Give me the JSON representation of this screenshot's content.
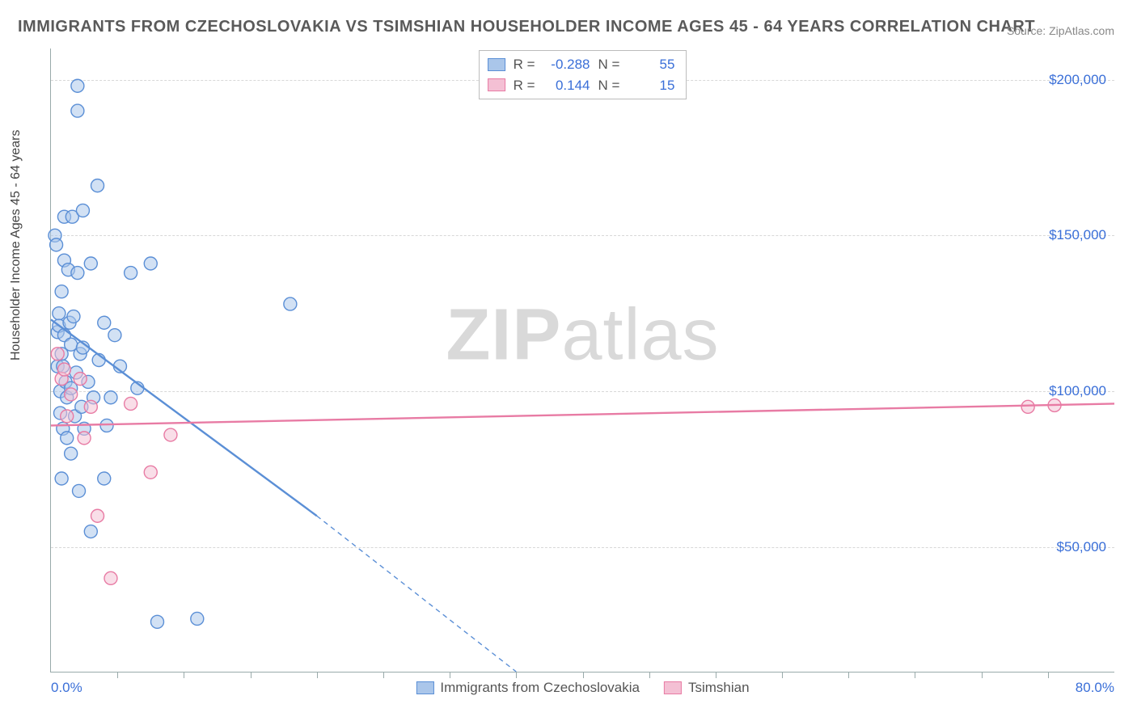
{
  "title": "IMMIGRANTS FROM CZECHOSLOVAKIA VS TSIMSHIAN HOUSEHOLDER INCOME AGES 45 - 64 YEARS CORRELATION CHART",
  "source": "Source: ZipAtlas.com",
  "watermark_bold": "ZIP",
  "watermark_rest": "atlas",
  "ylabel": "Householder Income Ages 45 - 64 years",
  "chart": {
    "type": "scatter",
    "background_color": "#ffffff",
    "grid_color": "#d8d8d8",
    "axis_color": "#9aa0a6",
    "xlim": [
      0,
      80
    ],
    "ylim": [
      10000,
      210000
    ],
    "x_tick_left": "0.0%",
    "x_tick_right": "80.0%",
    "x_minor_ticks": [
      5,
      10,
      15,
      20,
      25,
      30,
      35,
      40,
      45,
      50,
      55,
      60,
      65,
      70,
      75
    ],
    "y_ticks": [
      {
        "v": 50000,
        "label": "$50,000"
      },
      {
        "v": 100000,
        "label": "$100,000"
      },
      {
        "v": 150000,
        "label": "$150,000"
      },
      {
        "v": 200000,
        "label": "$200,000"
      }
    ],
    "marker_radius": 8,
    "marker_stroke_width": 1.4,
    "marker_fill_opacity": 0.28,
    "line_width": 2.4,
    "series": [
      {
        "name": "Immigrants from Czechoslovakia",
        "color": "#5b8fd6",
        "fill": "#aac6ea",
        "R": "-0.288",
        "N": "55",
        "points": [
          [
            0.3,
            150000
          ],
          [
            0.4,
            147000
          ],
          [
            0.5,
            108000
          ],
          [
            0.5,
            119000
          ],
          [
            0.6,
            125000
          ],
          [
            0.6,
            121000
          ],
          [
            0.7,
            93000
          ],
          [
            0.7,
            100000
          ],
          [
            0.8,
            112000
          ],
          [
            0.8,
            132000
          ],
          [
            0.8,
            72000
          ],
          [
            0.9,
            108000
          ],
          [
            0.9,
            88000
          ],
          [
            1.0,
            118000
          ],
          [
            1.0,
            156000
          ],
          [
            1.0,
            142000
          ],
          [
            1.1,
            103000
          ],
          [
            1.2,
            85000
          ],
          [
            1.2,
            98000
          ],
          [
            1.3,
            139000
          ],
          [
            1.4,
            122000
          ],
          [
            1.5,
            101000
          ],
          [
            1.5,
            115000
          ],
          [
            1.5,
            80000
          ],
          [
            1.6,
            156000
          ],
          [
            1.7,
            124000
          ],
          [
            1.8,
            92000
          ],
          [
            1.9,
            106000
          ],
          [
            2.0,
            138000
          ],
          [
            2.0,
            190000
          ],
          [
            2.1,
            68000
          ],
          [
            2.2,
            112000
          ],
          [
            2.3,
            95000
          ],
          [
            2.4,
            158000
          ],
          [
            2.4,
            114000
          ],
          [
            2.5,
            88000
          ],
          [
            2.8,
            103000
          ],
          [
            3.0,
            141000
          ],
          [
            3.0,
            55000
          ],
          [
            3.2,
            98000
          ],
          [
            3.5,
            166000
          ],
          [
            3.6,
            110000
          ],
          [
            4.0,
            122000
          ],
          [
            4.0,
            72000
          ],
          [
            4.2,
            89000
          ],
          [
            4.5,
            98000
          ],
          [
            4.8,
            118000
          ],
          [
            5.2,
            108000
          ],
          [
            6.0,
            138000
          ],
          [
            6.5,
            101000
          ],
          [
            7.5,
            141000
          ],
          [
            8.0,
            26000
          ],
          [
            11.0,
            27000
          ],
          [
            2.0,
            198000
          ],
          [
            18.0,
            128000
          ]
        ],
        "trend": {
          "x1": 0,
          "y1": 123000,
          "x2_solid": 20,
          "y2_solid": 60000,
          "x2_dash": 35,
          "y2_dash": 10000
        }
      },
      {
        "name": "Tsimshian",
        "color": "#e87ba4",
        "fill": "#f4c0d4",
        "R": "0.144",
        "N": "15",
        "points": [
          [
            0.5,
            112000
          ],
          [
            0.8,
            104000
          ],
          [
            1.0,
            107000
          ],
          [
            1.2,
            92000
          ],
          [
            1.5,
            99000
          ],
          [
            2.2,
            104000
          ],
          [
            2.5,
            85000
          ],
          [
            3.0,
            95000
          ],
          [
            3.5,
            60000
          ],
          [
            4.5,
            40000
          ],
          [
            6.0,
            96000
          ],
          [
            7.5,
            74000
          ],
          [
            9.0,
            86000
          ],
          [
            73.5,
            95000
          ],
          [
            75.5,
            95500
          ]
        ],
        "trend": {
          "x1": 0,
          "y1": 89000,
          "x2": 80,
          "y2": 96000
        }
      }
    ]
  },
  "top_legend_labels": {
    "R": "R =",
    "N": "N ="
  }
}
